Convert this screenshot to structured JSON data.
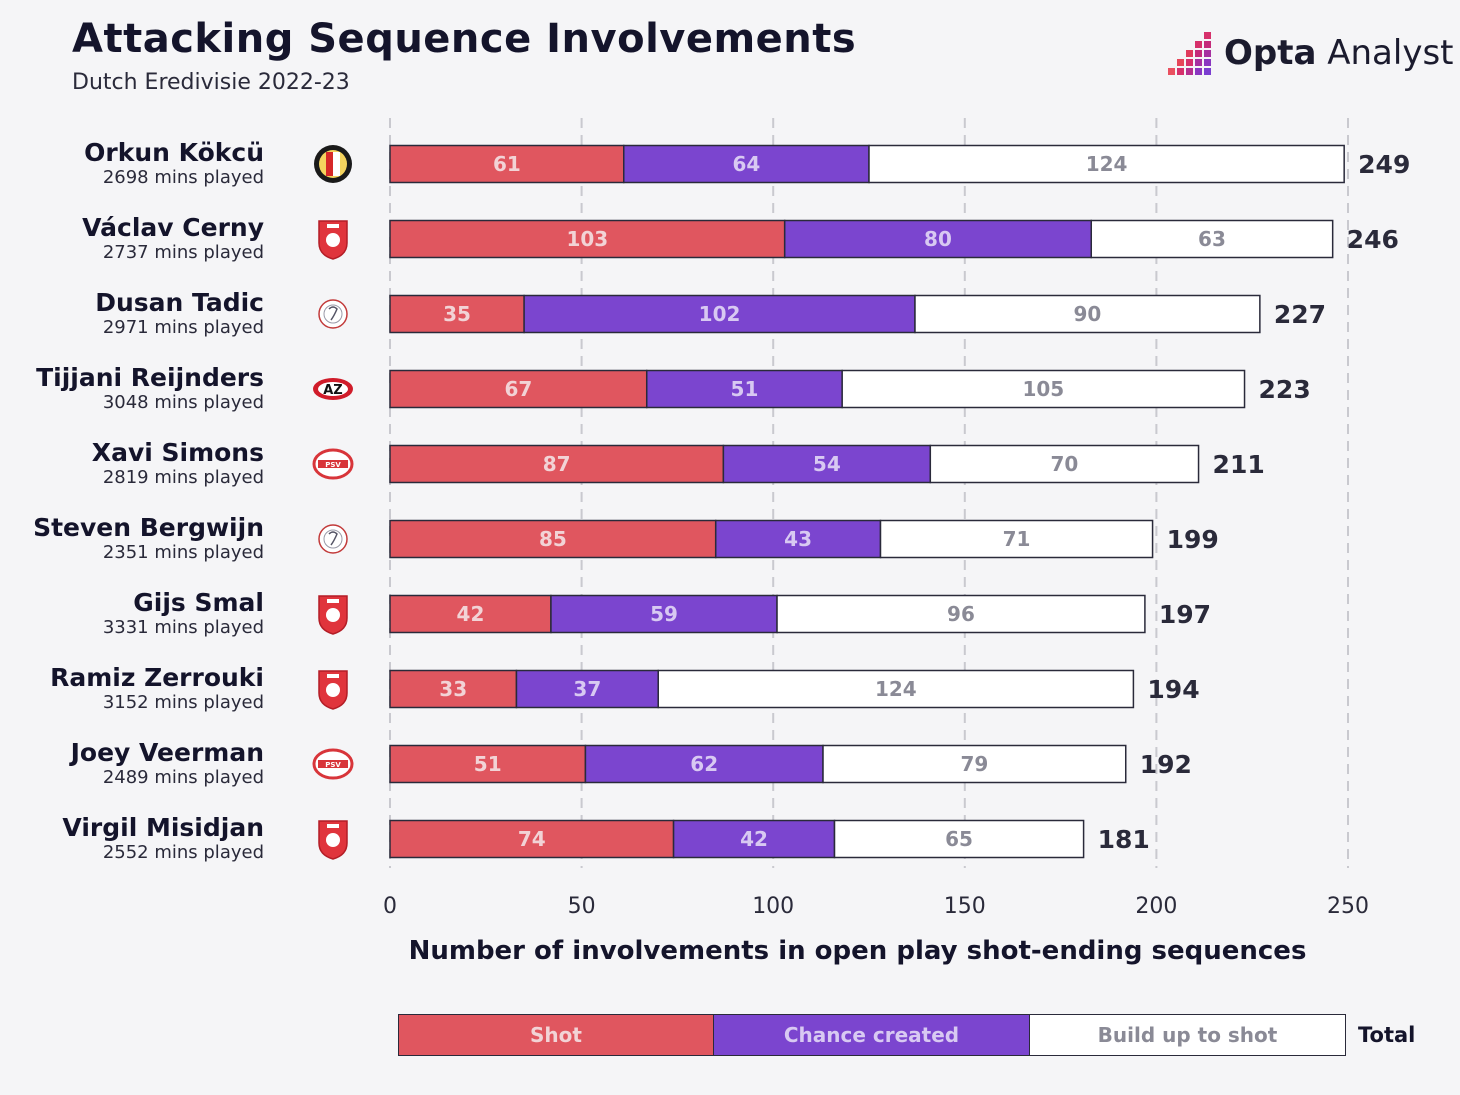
{
  "header": {
    "title": "Attacking Sequence Involvements",
    "subtitle": "Dutch Eredivisie 2022-23",
    "brand_bold": "Opta",
    "brand_light": "Analyst"
  },
  "colors": {
    "shot": "#e0565f",
    "chance": "#7b45cf",
    "build": "#ffffff",
    "outline": "#2a2a3a",
    "grid": "#c9c9cf",
    "build_text": "#8a8a96",
    "bar_text_light": "#f2d3d6"
  },
  "chart_data": {
    "type": "bar",
    "orientation": "horizontal",
    "stacked": true,
    "title": "Attacking Sequence Involvements",
    "subtitle": "Dutch Eredivisie 2022-23",
    "xlabel": "Number of involvements in open play shot-ending sequences",
    "xlim": [
      0,
      250
    ],
    "xticks": [
      0,
      50,
      100,
      150,
      200,
      250
    ],
    "grid": true,
    "players": [
      {
        "name": "Orkun Kökcü",
        "mins": "2698 mins played",
        "club_icon": "feyenoord-crest-icon",
        "total": 249
      },
      {
        "name": "Václav Cerny",
        "mins": "2737 mins played",
        "club_icon": "twente-crest-icon",
        "total": 246
      },
      {
        "name": "Dusan Tadic",
        "mins": "2971 mins played",
        "club_icon": "ajax-crest-icon",
        "total": 227
      },
      {
        "name": "Tijjani Reijnders",
        "mins": "3048 mins played",
        "club_icon": "az-crest-icon",
        "total": 223
      },
      {
        "name": "Xavi Simons",
        "mins": "2819 mins played",
        "club_icon": "psv-crest-icon",
        "total": 211
      },
      {
        "name": "Steven Bergwijn",
        "mins": "2351 mins played",
        "club_icon": "ajax-crest-icon",
        "total": 199
      },
      {
        "name": "Gijs Smal",
        "mins": "3331 mins played",
        "club_icon": "twente-crest-icon",
        "total": 197
      },
      {
        "name": "Ramiz Zerrouki",
        "mins": "3152 mins played",
        "club_icon": "twente-crest-icon",
        "total": 194
      },
      {
        "name": "Joey Veerman",
        "mins": "2489 mins played",
        "club_icon": "psv-crest-icon",
        "total": 192
      },
      {
        "name": "Virgil Misidjan",
        "mins": "2552 mins played",
        "club_icon": "twente-crest-icon",
        "total": 181
      }
    ],
    "series": [
      {
        "name": "Shot",
        "values": [
          61,
          103,
          35,
          67,
          87,
          85,
          42,
          33,
          51,
          74
        ]
      },
      {
        "name": "Chance created",
        "values": [
          64,
          80,
          102,
          51,
          54,
          43,
          59,
          37,
          62,
          42
        ]
      },
      {
        "name": "Build up to shot",
        "values": [
          124,
          63,
          90,
          105,
          70,
          71,
          96,
          124,
          79,
          65
        ]
      }
    ]
  },
  "legend": {
    "shot": "Shot",
    "chance": "Chance created",
    "build": "Build up to shot",
    "total": "Total"
  }
}
